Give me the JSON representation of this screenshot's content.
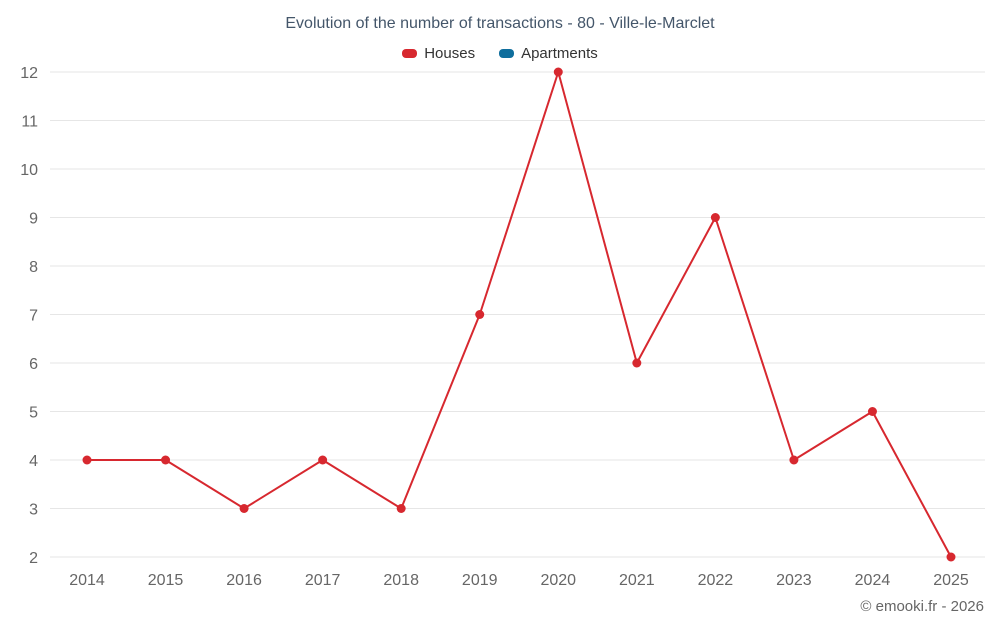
{
  "header": {
    "title": "Evolution of the number of transactions - 80 - Ville-le-Marclet"
  },
  "legend": {
    "items": [
      {
        "label": "Houses",
        "color": "#d7282f"
      },
      {
        "label": "Apartments",
        "color": "#0f6e9d"
      }
    ]
  },
  "footer": {
    "credit": "© emooki.fr - 2026"
  },
  "colors": {
    "grid": "#e6e6e6",
    "axis_text": "#666666",
    "title_text": "#44566a"
  },
  "chart_data": {
    "type": "line",
    "title": "Evolution of the number of transactions - 80 - Ville-le-Marclet",
    "x": [
      2014,
      2015,
      2016,
      2017,
      2018,
      2019,
      2020,
      2021,
      2022,
      2023,
      2024,
      2025
    ],
    "series": [
      {
        "name": "Houses",
        "color": "#d7282f",
        "values": [
          4,
          4,
          3,
          4,
          3,
          7,
          12,
          6,
          9,
          4,
          5,
          2
        ]
      },
      {
        "name": "Apartments",
        "color": "#0f6e9d",
        "values": []
      }
    ],
    "xlabel": "",
    "ylabel": "",
    "ylim": [
      2,
      12
    ],
    "yticks": [
      2,
      3,
      4,
      5,
      6,
      7,
      8,
      9,
      10,
      11,
      12
    ],
    "grid": "horizontal",
    "legend_position": "top",
    "marker": "circle"
  }
}
